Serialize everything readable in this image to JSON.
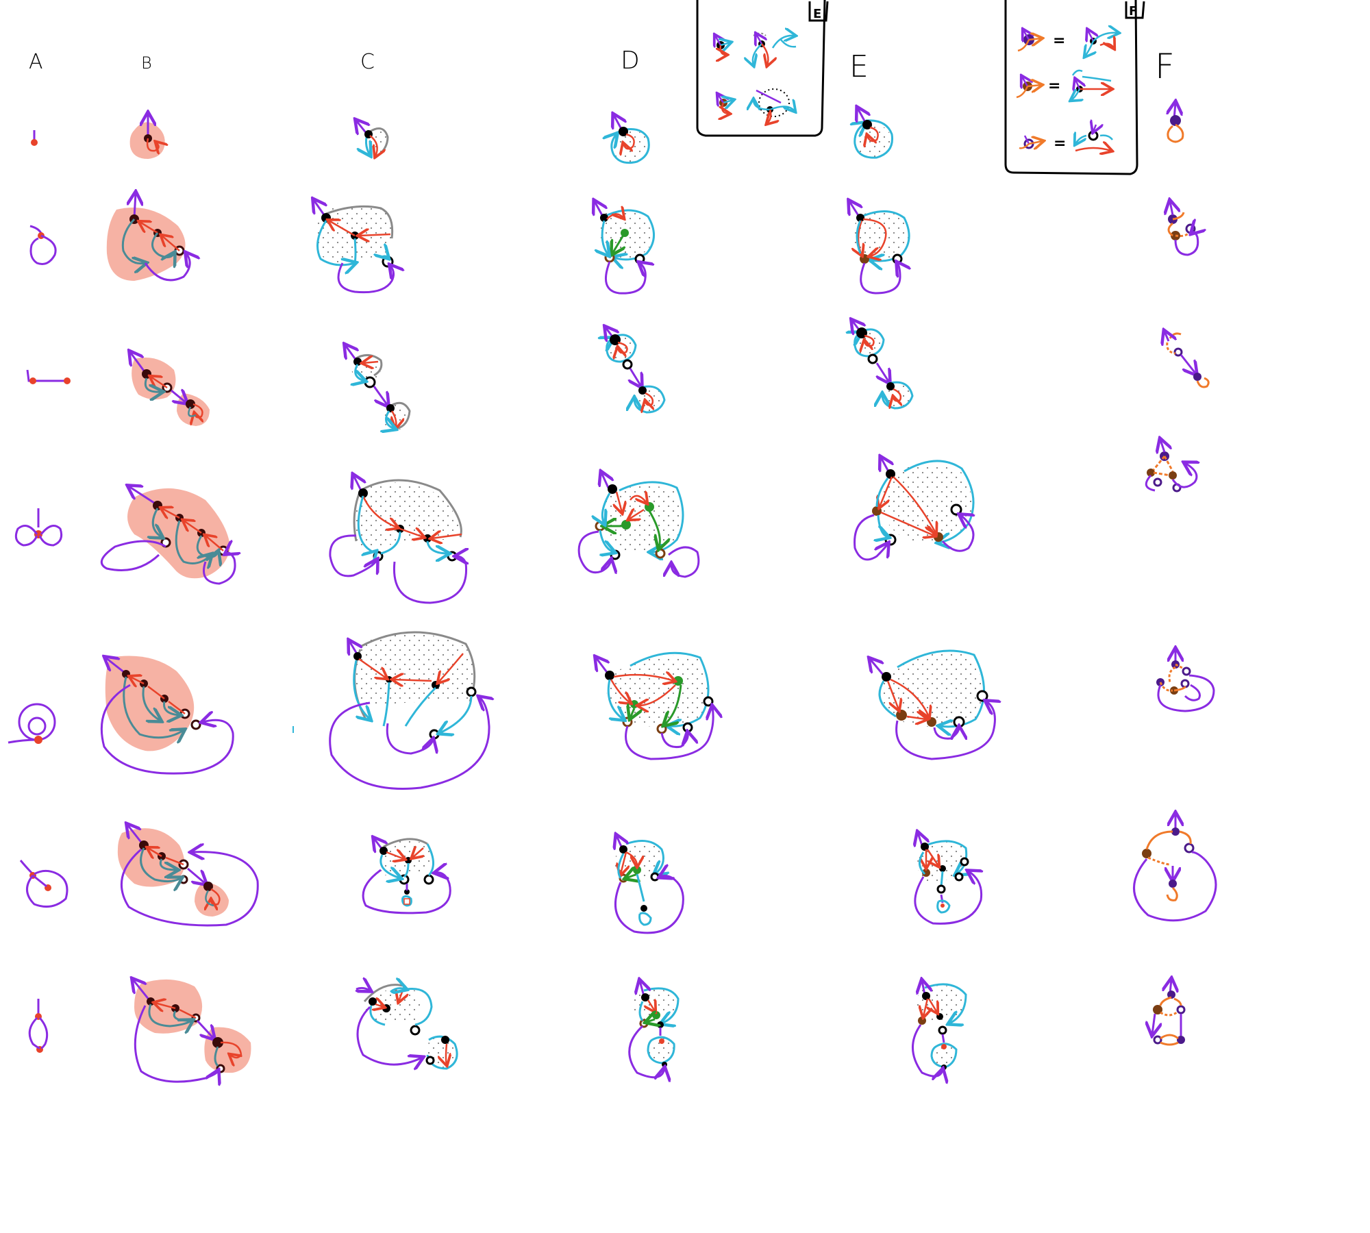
{
  "columns": {
    "a": "A",
    "b": "B",
    "c": "C",
    "d": "D",
    "e": "E",
    "f": "F"
  },
  "legend_boxes": {
    "e_tag": "E",
    "f_tag": "F",
    "f_equals": "="
  },
  "colors": {
    "red": "#e8432b",
    "purple": "#8a2be2",
    "cyan": "#2fb6d8",
    "teal": "#4a8b96",
    "gray": "#8a8a8a",
    "black": "#000000",
    "green": "#2a9a2a",
    "brown": "#7a3e12",
    "orange": "#f07a2a",
    "indigo": "#4b1a8a",
    "salmon": "#f4a494"
  }
}
